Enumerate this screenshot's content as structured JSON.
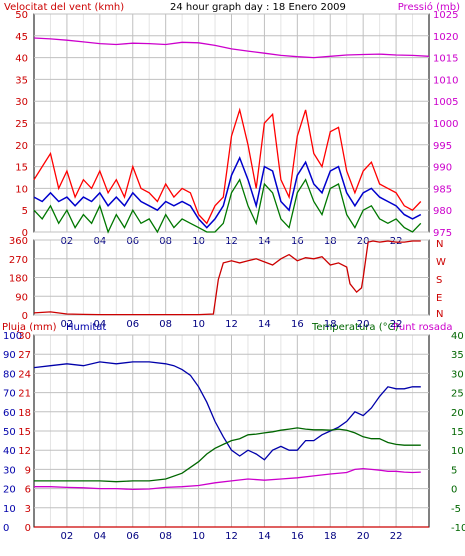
{
  "header": {
    "left_label": "Velocitat del vent (kmh)",
    "title": "24 hour graph day : 18 Enero 2009",
    "right_label": "Pressió (mb)"
  },
  "colors": {
    "wind": "#cc0000",
    "gust": "#ff0000",
    "wind_avg": "#0000cc",
    "wind_green": "#007700",
    "pressure": "#cc00cc",
    "direction": "#cc0000",
    "humidity": "#0000aa",
    "temperature": "#006600",
    "dewpoint": "#cc00cc",
    "rain": "#cc0000",
    "grid": "#c0c0c0",
    "frame": "#000000"
  },
  "chart_data": [
    {
      "type": "line",
      "name": "wind-pressure-panel",
      "title": "24 hour graph day : 18 Enero 2009",
      "xticks": [
        "02",
        "04",
        "06",
        "08",
        "10",
        "12",
        "14",
        "16",
        "18",
        "20",
        "22"
      ],
      "xlim": [
        0,
        24
      ],
      "left_axis": {
        "label": "Velocitat del vent (kmh)",
        "ticks": [
          0,
          5,
          10,
          15,
          20,
          25,
          30,
          35,
          40,
          45,
          50
        ],
        "ylim": [
          0,
          50
        ]
      },
      "right_axis": {
        "label": "Pressió (mb)",
        "ticks": [
          975,
          980,
          985,
          990,
          995,
          1000,
          1005,
          1010,
          1015,
          1020,
          1025
        ],
        "ylim": [
          975,
          1025
        ]
      },
      "series": [
        {
          "name": "gust",
          "axis": "left",
          "x": [
            0,
            0.5,
            1,
            1.5,
            2,
            2.5,
            3,
            3.5,
            4,
            4.5,
            5,
            5.5,
            6,
            6.5,
            7,
            7.5,
            8,
            8.5,
            9,
            9.5,
            10,
            10.5,
            11,
            11.5,
            12,
            12.5,
            13,
            13.5,
            14,
            14.5,
            15,
            15.5,
            16,
            16.5,
            17,
            17.5,
            18,
            18.5,
            19,
            19.5,
            20,
            20.5,
            21,
            21.5,
            22,
            22.5,
            23,
            23.5
          ],
          "values": [
            12,
            15,
            18,
            10,
            14,
            8,
            12,
            10,
            14,
            9,
            12,
            8,
            15,
            10,
            9,
            7,
            11,
            8,
            10,
            9,
            4,
            2,
            6,
            8,
            22,
            28,
            20,
            10,
            25,
            27,
            12,
            8,
            22,
            28,
            18,
            15,
            23,
            24,
            14,
            9,
            14,
            16,
            11,
            10,
            9,
            6,
            5,
            7
          ]
        },
        {
          "name": "wind-avg",
          "axis": "left",
          "x": [
            0,
            0.5,
            1,
            1.5,
            2,
            2.5,
            3,
            3.5,
            4,
            4.5,
            5,
            5.5,
            6,
            6.5,
            7,
            7.5,
            8,
            8.5,
            9,
            9.5,
            10,
            10.5,
            11,
            11.5,
            12,
            12.5,
            13,
            13.5,
            14,
            14.5,
            15,
            15.5,
            16,
            16.5,
            17,
            17.5,
            18,
            18.5,
            19,
            19.5,
            20,
            20.5,
            21,
            21.5,
            22,
            22.5,
            23,
            23.5
          ],
          "values": [
            8,
            7,
            9,
            7,
            8,
            6,
            8,
            7,
            9,
            6,
            8,
            6,
            9,
            7,
            6,
            5,
            7,
            6,
            7,
            6,
            3,
            1,
            3,
            6,
            13,
            17,
            12,
            6,
            15,
            14,
            7,
            5,
            13,
            16,
            11,
            9,
            14,
            15,
            9,
            6,
            9,
            10,
            8,
            7,
            6,
            4,
            3,
            4
          ]
        },
        {
          "name": "wind",
          "axis": "left",
          "x": [
            0,
            0.5,
            1,
            1.5,
            2,
            2.5,
            3,
            3.5,
            4,
            4.5,
            5,
            5.5,
            6,
            6.5,
            7,
            7.5,
            8,
            8.5,
            9,
            9.5,
            10,
            10.5,
            11,
            11.5,
            12,
            12.5,
            13,
            13.5,
            14,
            14.5,
            15,
            15.5,
            16,
            16.5,
            17,
            17.5,
            18,
            18.5,
            19,
            19.5,
            20,
            20.5,
            21,
            21.5,
            22,
            22.5,
            23,
            23.5
          ],
          "values": [
            5,
            3,
            6,
            2,
            5,
            1,
            4,
            2,
            6,
            0,
            4,
            1,
            5,
            2,
            3,
            0,
            4,
            1,
            3,
            2,
            1,
            0,
            0,
            2,
            9,
            12,
            6,
            2,
            11,
            9,
            3,
            1,
            9,
            12,
            7,
            4,
            10,
            11,
            4,
            1,
            5,
            6,
            3,
            2,
            3,
            1,
            0,
            2
          ]
        },
        {
          "name": "pressure",
          "axis": "right",
          "x": [
            0,
            1,
            2,
            3,
            4,
            5,
            6,
            7,
            8,
            9,
            10,
            11,
            12,
            13,
            14,
            15,
            16,
            17,
            18,
            19,
            20,
            21,
            22,
            23,
            24
          ],
          "values": [
            1019.5,
            1019.3,
            1019,
            1018.6,
            1018.2,
            1018,
            1018.3,
            1018.2,
            1018,
            1018.5,
            1018.4,
            1017.8,
            1017,
            1016.5,
            1016,
            1015.5,
            1015.2,
            1015,
            1015.3,
            1015.6,
            1015.7,
            1015.8,
            1015.6,
            1015.5,
            1015.3
          ]
        }
      ]
    },
    {
      "type": "line",
      "name": "direction-panel",
      "xticks": [
        "02",
        "04",
        "06",
        "08",
        "10",
        "12",
        "14",
        "16",
        "18",
        "20",
        "22"
      ],
      "xlim": [
        0,
        24
      ],
      "left_axis": {
        "ticks": [
          0,
          90,
          180,
          270,
          360
        ],
        "ylim": [
          0,
          360
        ]
      },
      "right_axis": {
        "ticks": [
          "N",
          "W",
          "S",
          "E",
          "N"
        ]
      },
      "series": [
        {
          "name": "direction",
          "x": [
            0,
            1,
            2,
            3,
            4,
            5,
            6,
            7,
            8,
            9,
            10,
            10.9,
            11.2,
            11.5,
            12,
            12.5,
            13,
            13.5,
            14,
            14.5,
            15,
            15.5,
            16,
            16.5,
            17,
            17.5,
            18,
            18.5,
            19,
            19.2,
            19.6,
            19.9,
            20,
            20.3,
            20.6,
            21,
            21.5,
            22,
            22.5,
            23,
            23.5
          ],
          "values": [
            10,
            15,
            5,
            3,
            2,
            2,
            2,
            2,
            2,
            2,
            2,
            5,
            170,
            250,
            260,
            250,
            260,
            270,
            255,
            240,
            270,
            290,
            260,
            275,
            270,
            280,
            240,
            250,
            230,
            150,
            110,
            130,
            180,
            350,
            355,
            350,
            355,
            350,
            350,
            355,
            355
          ]
        }
      ]
    },
    {
      "type": "line",
      "name": "humidity-temperature-panel",
      "xticks": [
        "02",
        "04",
        "06",
        "08",
        "10",
        "12",
        "14",
        "16",
        "18",
        "20",
        "22"
      ],
      "xlim": [
        0,
        24
      ],
      "rain_axis": {
        "label": "Pluja (mm)",
        "ticks": [
          0,
          3,
          6,
          9,
          12,
          15,
          18,
          21,
          24,
          27,
          30
        ]
      },
      "humidity_axis": {
        "label": "Humitat",
        "ticks": [
          0,
          10,
          20,
          30,
          40,
          50,
          60,
          70,
          80,
          90,
          100
        ],
        "ylim": [
          0,
          100
        ]
      },
      "temperature_axis": {
        "label": "Temperatura (°C)",
        "ticks": [
          -10,
          -5,
          0,
          5,
          10,
          15,
          20,
          25,
          30,
          35,
          40
        ],
        "ylim": [
          -10,
          40
        ]
      },
      "dewpoint_label": "Punt rosada",
      "series": [
        {
          "name": "humidity",
          "axis": "humidity",
          "x": [
            0,
            1,
            2,
            3,
            4,
            5,
            6,
            7,
            8,
            8.5,
            9,
            9.5,
            10,
            10.5,
            11,
            11.5,
            12,
            12.5,
            13,
            13.5,
            14,
            14.5,
            15,
            15.5,
            16,
            16.5,
            17,
            17.5,
            18,
            18.5,
            19,
            19.5,
            20,
            20.5,
            21,
            21.5,
            22,
            22.5,
            23,
            23.5
          ],
          "values": [
            83,
            84,
            85,
            84,
            86,
            85,
            86,
            86,
            85,
            84,
            82,
            79,
            73,
            65,
            55,
            47,
            40,
            37,
            40,
            38,
            35,
            40,
            42,
            40,
            40,
            45,
            45,
            48,
            50,
            52,
            55,
            60,
            58,
            62,
            68,
            73,
            72,
            72,
            73,
            73
          ]
        },
        {
          "name": "temperature",
          "axis": "temperature",
          "x": [
            0,
            1,
            2,
            3,
            4,
            5,
            6,
            7,
            8,
            9,
            10,
            10.5,
            11,
            11.5,
            12,
            12.5,
            13,
            13.5,
            14,
            14.5,
            15,
            15.5,
            16,
            16.5,
            17,
            17.5,
            18,
            18.5,
            19,
            19.5,
            20,
            20.5,
            21,
            21.5,
            22,
            22.5,
            23,
            23.5
          ],
          "values": [
            2,
            2,
            2,
            2,
            2,
            1.8,
            2,
            2,
            2.5,
            4,
            7,
            9,
            10.5,
            11.5,
            12.5,
            13,
            14,
            14.2,
            14.5,
            14.8,
            15.2,
            15.5,
            15.8,
            15.5,
            15.3,
            15.3,
            15.2,
            15.5,
            15.2,
            14.5,
            13.5,
            13,
            13,
            12,
            11.5,
            11.3,
            11.3,
            11.3
          ]
        },
        {
          "name": "dewpoint",
          "axis": "temperature",
          "x": [
            0,
            1,
            2,
            3,
            4,
            5,
            6,
            7,
            8,
            9,
            10,
            11,
            12,
            13,
            14,
            15,
            16,
            17,
            18,
            19,
            19.5,
            20,
            20.5,
            21,
            21.5,
            22,
            22.5,
            23,
            23.5
          ],
          "values": [
            0.5,
            0.5,
            0.3,
            0.2,
            0,
            0,
            -0.2,
            -0.1,
            0.3,
            0.5,
            0.8,
            1.5,
            2,
            2.5,
            2.2,
            2.5,
            2.8,
            3.3,
            3.8,
            4.2,
            5,
            5.2,
            5,
            4.8,
            4.5,
            4.5,
            4.3,
            4.2,
            4.3
          ]
        },
        {
          "name": "rain",
          "axis": "rain",
          "x": [
            0,
            24
          ],
          "values": [
            0,
            0
          ]
        }
      ]
    }
  ]
}
